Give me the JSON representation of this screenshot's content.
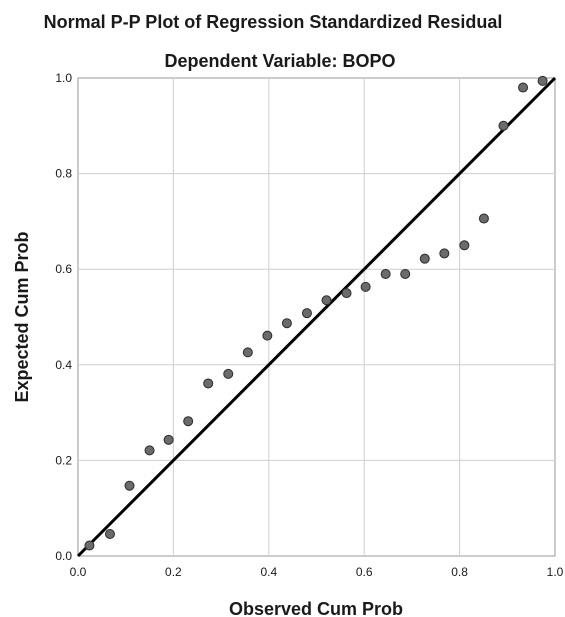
{
  "chart_data": {
    "type": "scatter",
    "title": "Normal P-P Plot of Regression Standardized Residual",
    "subtitle": "Dependent Variable: BOPO",
    "xlabel": "Observed Cum Prob",
    "ylabel": "Expected Cum Prob",
    "xlim": [
      0.0,
      1.0
    ],
    "ylim": [
      0.0,
      1.0
    ],
    "xticks": [
      "0.0",
      "0.2",
      "0.4",
      "0.6",
      "0.8",
      "1.0"
    ],
    "yticks": [
      "0.0",
      "0.2",
      "0.4",
      "0.6",
      "0.8",
      "1.0"
    ],
    "grid": true,
    "reference_line": {
      "from": [
        0,
        0
      ],
      "to": [
        1,
        1
      ]
    },
    "series": [
      {
        "x": [
          0.024,
          0.067,
          0.108,
          0.15,
          0.19,
          0.231,
          0.273,
          0.315,
          0.356,
          0.397,
          0.438,
          0.48,
          0.521,
          0.563,
          0.603,
          0.645,
          0.686,
          0.727,
          0.768,
          0.81,
          0.851,
          0.892,
          0.933,
          0.974
        ],
        "y": [
          0.022,
          0.046,
          0.147,
          0.221,
          0.243,
          0.282,
          0.361,
          0.381,
          0.426,
          0.461,
          0.487,
          0.508,
          0.535,
          0.55,
          0.563,
          0.59,
          0.59,
          0.622,
          0.633,
          0.65,
          0.706,
          0.9,
          0.98,
          0.994
        ]
      }
    ]
  }
}
